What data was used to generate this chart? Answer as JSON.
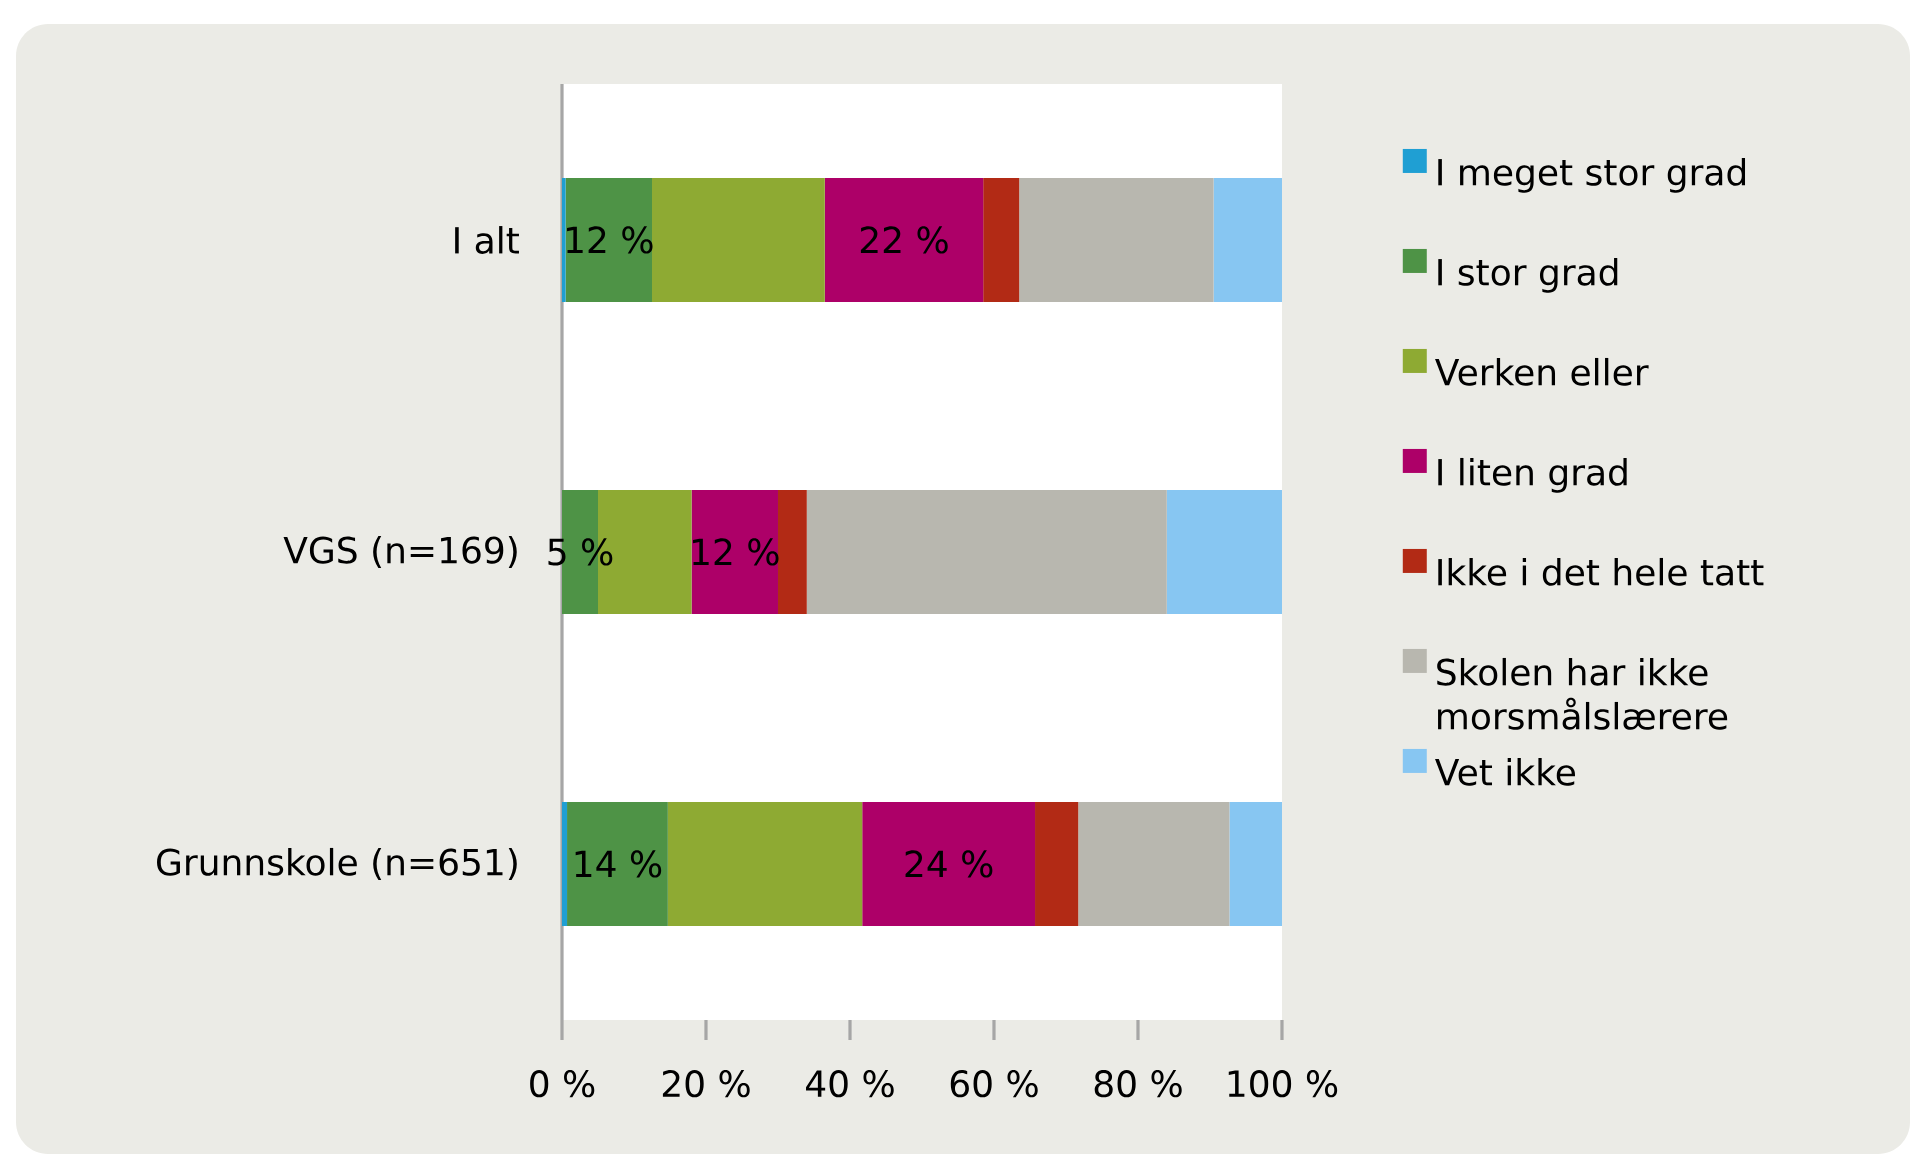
{
  "chart_data": {
    "type": "bar",
    "orientation": "horizontal",
    "stacked": true,
    "categories": [
      "I alt",
      "VGS (n=169)",
      "Grunnskole (n=651)"
    ],
    "series": [
      {
        "name": "I meget stor grad",
        "color": "#1f9fd3",
        "values": [
          0.5,
          0,
          0.7
        ]
      },
      {
        "name": "I stor grad",
        "color": "#4e9346",
        "values": [
          12,
          5,
          14
        ],
        "value_labels": [
          "12 %",
          "5 %",
          "14 %"
        ]
      },
      {
        "name": "Verken eller",
        "color": "#8eaa33",
        "values": [
          24,
          13,
          27
        ]
      },
      {
        "name": "I liten grad",
        "color": "#ad0068",
        "values": [
          22,
          12,
          24
        ],
        "value_labels": [
          "22 %",
          "12 %",
          "24 %"
        ]
      },
      {
        "name": "Ikke i det hele tatt",
        "color": "#b22a15",
        "values": [
          5,
          4,
          6
        ]
      },
      {
        "name": "Skolen har ikke morsmålslærere",
        "color": "#b8b7af",
        "values": [
          27,
          50,
          21
        ]
      },
      {
        "name": "Vet ikke",
        "color": "#87c6f2",
        "values": [
          9.5,
          16,
          7.3
        ]
      }
    ],
    "xlim": [
      0,
      100
    ],
    "xticks": [
      {
        "value": 0,
        "label": "0 %"
      },
      {
        "value": 20,
        "label": "20 %"
      },
      {
        "value": 40,
        "label": "40 %"
      },
      {
        "value": 60,
        "label": "60 %"
      },
      {
        "value": 80,
        "label": "80 %"
      },
      {
        "value": 100,
        "label": "100 %"
      }
    ],
    "legend": "right"
  }
}
